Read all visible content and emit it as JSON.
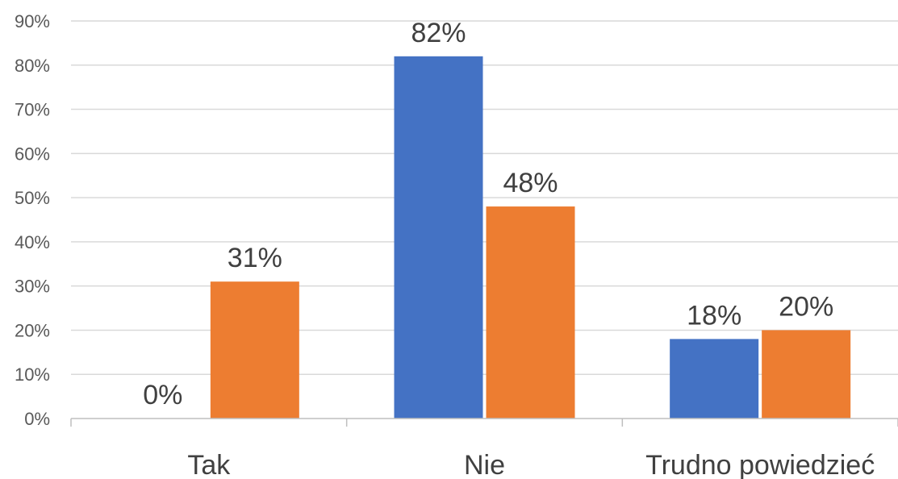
{
  "chart_data": {
    "type": "bar",
    "categories": [
      "Tak",
      "Nie",
      "Trudno powiedzieć"
    ],
    "series": [
      {
        "values": [
          0,
          82,
          18
        ],
        "labels": [
          "0%",
          "82%",
          "18%"
        ],
        "color": "#4472C4"
      },
      {
        "values": [
          31,
          48,
          20
        ],
        "labels": [
          "31%",
          "48%",
          "20%"
        ],
        "color": "#ED7D31"
      }
    ],
    "y_ticks": [
      "0%",
      "10%",
      "20%",
      "30%",
      "40%",
      "50%",
      "60%",
      "70%",
      "80%",
      "90%"
    ],
    "ylim": [
      0,
      90
    ],
    "grid": true,
    "legend": "none"
  }
}
